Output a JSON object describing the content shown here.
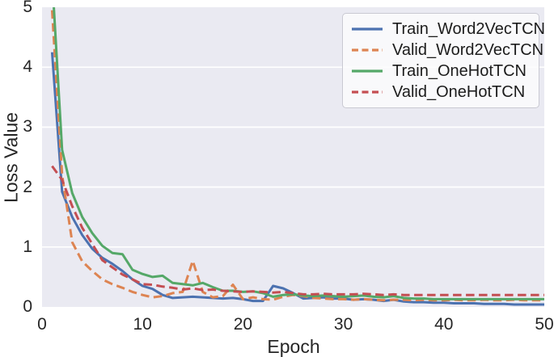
{
  "figure": {
    "background": "#ffffff",
    "plot_background": "#eaeaf2",
    "grid_color": "#ffffff",
    "text_color": "#262626"
  },
  "chart_data": {
    "type": "line",
    "title": "",
    "xlabel": "Epoch",
    "ylabel": "Loss Value",
    "xlim": [
      0,
      50
    ],
    "ylim": [
      0,
      5
    ],
    "x_ticks": [
      0,
      10,
      20,
      30,
      40,
      50
    ],
    "y_ticks": [
      0,
      1,
      2,
      3,
      4,
      5
    ],
    "grid": "horizontal-only",
    "legend_position": "upper-right",
    "x": [
      1,
      2,
      3,
      4,
      5,
      6,
      7,
      8,
      9,
      10,
      11,
      12,
      13,
      14,
      15,
      16,
      17,
      18,
      19,
      20,
      21,
      22,
      23,
      24,
      25,
      26,
      27,
      28,
      29,
      30,
      31,
      32,
      33,
      34,
      35,
      36,
      37,
      38,
      39,
      40,
      41,
      42,
      43,
      44,
      45,
      46,
      47,
      48,
      49,
      50
    ],
    "series": [
      {
        "name": "Train_Word2VecTCN",
        "color": "#4C72B0",
        "style": "solid",
        "values": [
          4.25,
          1.92,
          1.5,
          1.2,
          0.97,
          0.82,
          0.72,
          0.6,
          0.46,
          0.35,
          0.3,
          0.2,
          0.15,
          0.16,
          0.17,
          0.16,
          0.15,
          0.14,
          0.15,
          0.13,
          0.1,
          0.1,
          0.35,
          0.31,
          0.23,
          0.14,
          0.15,
          0.16,
          0.14,
          0.14,
          0.12,
          0.13,
          0.12,
          0.1,
          0.12,
          0.09,
          0.08,
          0.08,
          0.07,
          0.07,
          0.06,
          0.06,
          0.06,
          0.05,
          0.05,
          0.05,
          0.04,
          0.04,
          0.04,
          0.04
        ]
      },
      {
        "name": "Valid_Word2VecTCN",
        "color": "#DD8452",
        "style": "dashed",
        "values": [
          4.95,
          2.2,
          1.08,
          0.76,
          0.6,
          0.46,
          0.38,
          0.32,
          0.25,
          0.2,
          0.16,
          0.18,
          0.23,
          0.25,
          0.77,
          0.25,
          0.16,
          0.18,
          0.37,
          0.13,
          0.16,
          0.13,
          0.12,
          0.17,
          0.2,
          0.18,
          0.15,
          0.14,
          0.13,
          0.13,
          0.12,
          0.13,
          0.12,
          0.11,
          0.12,
          0.12,
          0.11,
          0.12,
          0.11,
          0.11,
          0.12,
          0.11,
          0.11,
          0.12,
          0.11,
          0.11,
          0.12,
          0.11,
          0.11,
          0.11
        ]
      },
      {
        "name": "Train_OneHotTCN",
        "color": "#55A868",
        "style": "solid",
        "values": [
          5.5,
          2.62,
          1.9,
          1.5,
          1.23,
          1.02,
          0.9,
          0.88,
          0.62,
          0.55,
          0.5,
          0.52,
          0.4,
          0.38,
          0.36,
          0.4,
          0.33,
          0.27,
          0.27,
          0.25,
          0.26,
          0.23,
          0.17,
          0.2,
          0.21,
          0.19,
          0.18,
          0.19,
          0.18,
          0.17,
          0.18,
          0.19,
          0.17,
          0.16,
          0.18,
          0.15,
          0.14,
          0.14,
          0.13,
          0.13,
          0.13,
          0.13,
          0.13,
          0.13,
          0.13,
          0.13,
          0.13,
          0.13,
          0.13,
          0.13
        ]
      },
      {
        "name": "Valid_OneHotTCN",
        "color": "#C44E52",
        "style": "dashed",
        "values": [
          2.35,
          2.12,
          1.68,
          1.32,
          1.05,
          0.78,
          0.66,
          0.54,
          0.46,
          0.38,
          0.37,
          0.34,
          0.32,
          0.29,
          0.31,
          0.28,
          0.29,
          0.27,
          0.26,
          0.25,
          0.26,
          0.25,
          0.24,
          0.25,
          0.23,
          0.21,
          0.21,
          0.22,
          0.21,
          0.21,
          0.21,
          0.22,
          0.21,
          0.2,
          0.21,
          0.2,
          0.2,
          0.2,
          0.2,
          0.2,
          0.2,
          0.2,
          0.2,
          0.2,
          0.2,
          0.2,
          0.2,
          0.2,
          0.2,
          0.2
        ]
      }
    ]
  }
}
